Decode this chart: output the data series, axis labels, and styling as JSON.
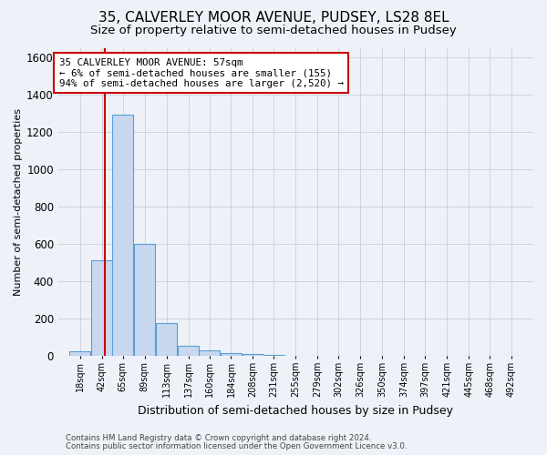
{
  "title": "35, CALVERLEY MOOR AVENUE, PUDSEY, LS28 8EL",
  "subtitle": "Size of property relative to semi-detached houses in Pudsey",
  "xlabel": "Distribution of semi-detached houses by size in Pudsey",
  "ylabel": "Number of semi-detached properties",
  "footer_line1": "Contains HM Land Registry data © Crown copyright and database right 2024.",
  "footer_line2": "Contains public sector information licensed under the Open Government Licence v3.0.",
  "bin_labels": [
    "18sqm",
    "42sqm",
    "65sqm",
    "89sqm",
    "113sqm",
    "137sqm",
    "160sqm",
    "184sqm",
    "208sqm",
    "231sqm",
    "255sqm",
    "279sqm",
    "302sqm",
    "326sqm",
    "350sqm",
    "374sqm",
    "397sqm",
    "421sqm",
    "445sqm",
    "468sqm",
    "492sqm"
  ],
  "bin_edges": [
    18,
    42,
    65,
    89,
    113,
    137,
    160,
    184,
    208,
    231,
    255,
    279,
    302,
    326,
    350,
    374,
    397,
    421,
    445,
    468,
    492,
    516
  ],
  "bar_heights": [
    25,
    510,
    1290,
    600,
    175,
    55,
    30,
    15,
    10,
    5,
    0,
    0,
    0,
    0,
    0,
    0,
    0,
    0,
    0,
    0,
    0
  ],
  "bar_color": "#c8d8ee",
  "bar_edge_color": "#5a9fd4",
  "property_size": 57,
  "red_line_color": "#cc0000",
  "annotation_line1": "35 CALVERLEY MOOR AVENUE: 57sqm",
  "annotation_line2": "← 6% of semi-detached houses are smaller (155)",
  "annotation_line3": "94% of semi-detached houses are larger (2,520) →",
  "annotation_box_color": "#ffffff",
  "annotation_box_edge": "#cc0000",
  "ylim": [
    0,
    1650
  ],
  "background_color": "#eef2f8",
  "plot_bg_color": "#eef2f8",
  "grid_color": "#c8cdd8",
  "title_fontsize": 11,
  "subtitle_fontsize": 9.5
}
